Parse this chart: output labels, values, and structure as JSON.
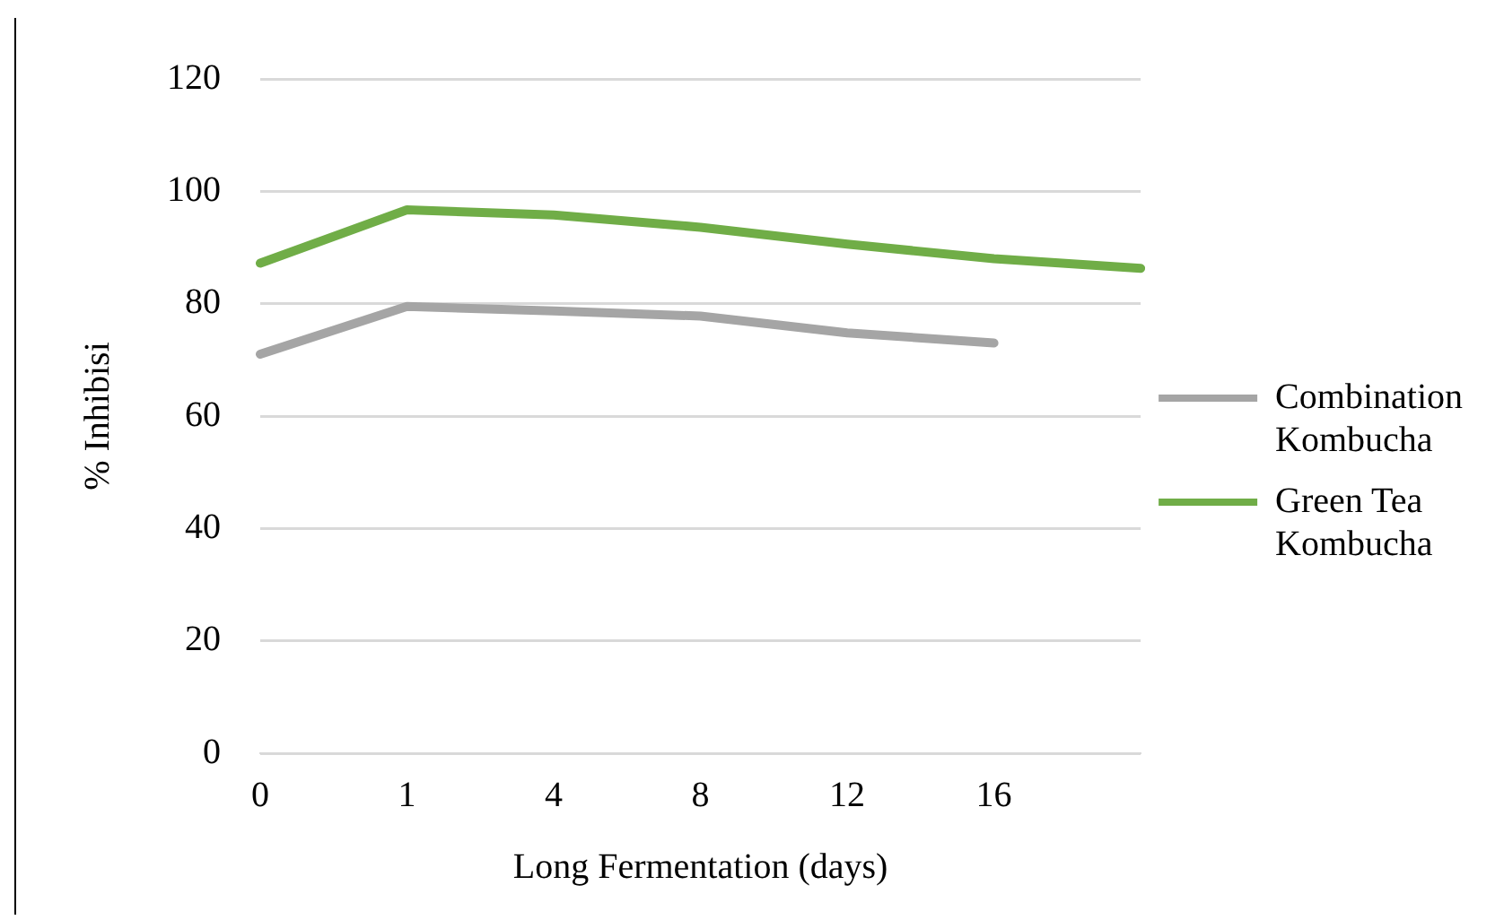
{
  "chart_data": {
    "type": "line",
    "xlabel": "Long Fermentation (days)",
    "ylabel": "% Inhibisi",
    "categories": [
      "0",
      "1",
      "4",
      "8",
      "12",
      "16",
      null
    ],
    "series": [
      {
        "name": "Combination Kombucha",
        "color": "#a5a5a5",
        "values": [
          71,
          79.5,
          78.7,
          77.8,
          74.8,
          73,
          null
        ]
      },
      {
        "name": "Green Tea Kombucha",
        "color": "#70ad47",
        "values": [
          87.2,
          96.7,
          95.8,
          93.6,
          90.6,
          88,
          86.3
        ]
      }
    ],
    "ylim": [
      0,
      120
    ],
    "yticks": [
      0,
      20,
      40,
      60,
      80,
      100,
      120
    ],
    "grid": "y",
    "legend": "right",
    "marker": "none",
    "line_style": "solid"
  }
}
